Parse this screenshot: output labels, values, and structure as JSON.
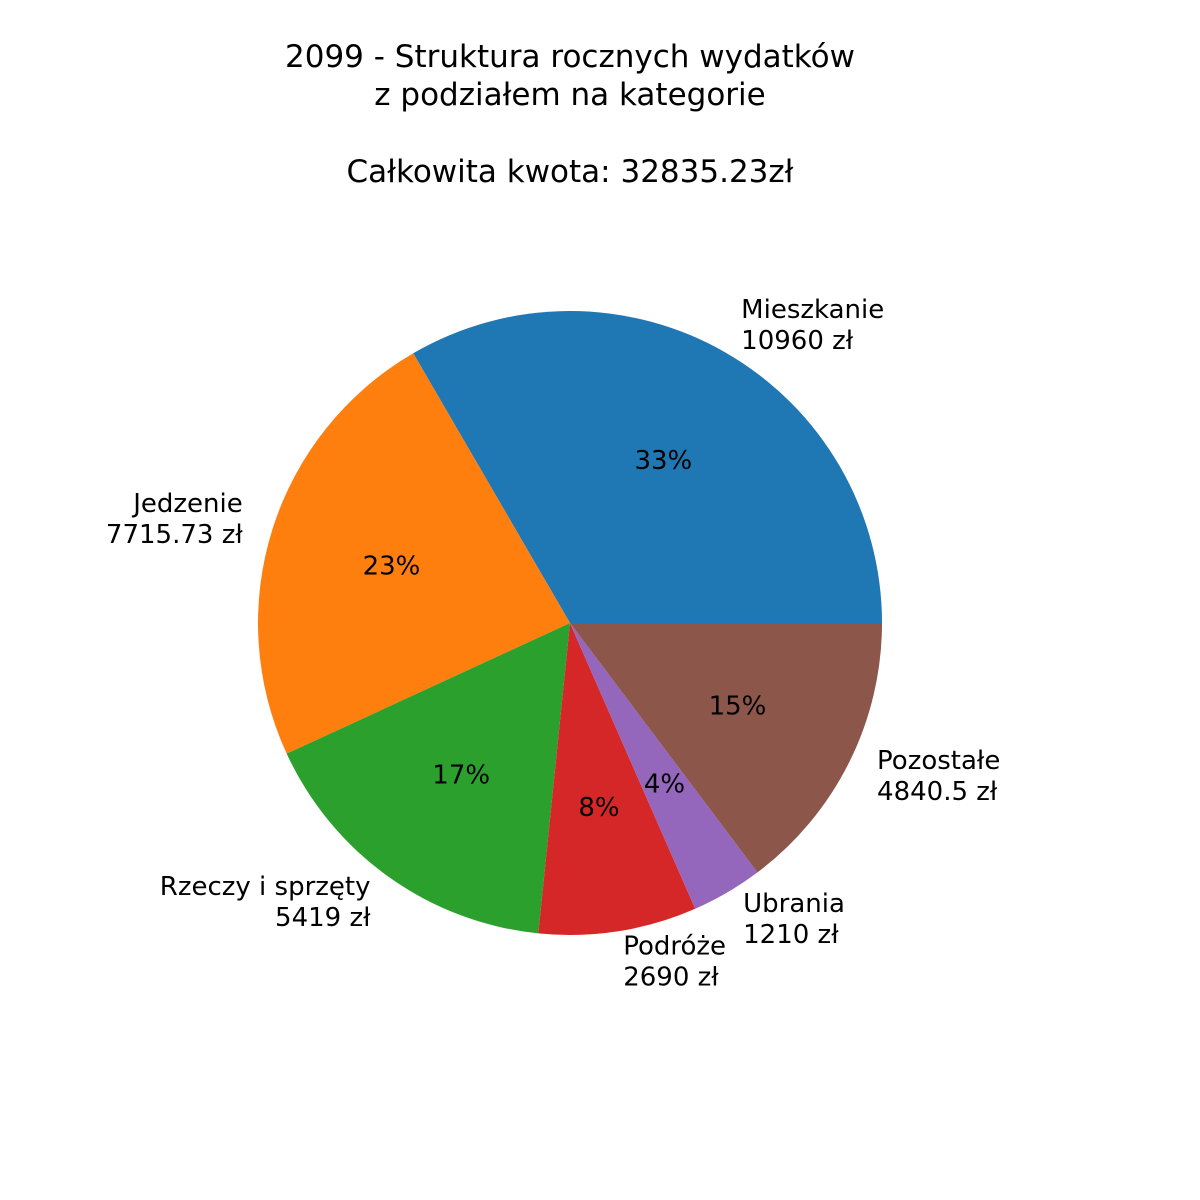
{
  "chart_data": {
    "type": "pie",
    "title_lines": [
      "2099 - Struktura rocznych wydatków",
      "z podziałem na kategorie",
      "",
      "Całkowita kwota: 32835.23zł"
    ],
    "slices": [
      {
        "name": "Mieszkanie",
        "amount_label": "10960 zł",
        "value": 10960,
        "pct_label": "33%",
        "color": "#1f77b4"
      },
      {
        "name": "Jedzenie",
        "amount_label": "7715.73 zł",
        "value": 7715.73,
        "pct_label": "23%",
        "color": "#ff7f0e"
      },
      {
        "name": "Rzeczy i sprzęty",
        "amount_label": "5419 zł",
        "value": 5419,
        "pct_label": "17%",
        "color": "#2ca02c"
      },
      {
        "name": "Podróże",
        "amount_label": "2690 zł",
        "value": 2690,
        "pct_label": "8%",
        "color": "#d62728"
      },
      {
        "name": "Ubrania",
        "amount_label": "1210 zł",
        "value": 1210,
        "pct_label": "4%",
        "color": "#9467bd"
      },
      {
        "name": "Pozostałe",
        "amount_label": "4840.5 zł",
        "value": 4840.5,
        "pct_label": "15%",
        "color": "#8c564b"
      }
    ],
    "start_angle_deg": 0,
    "direction": "counterclockwise"
  }
}
